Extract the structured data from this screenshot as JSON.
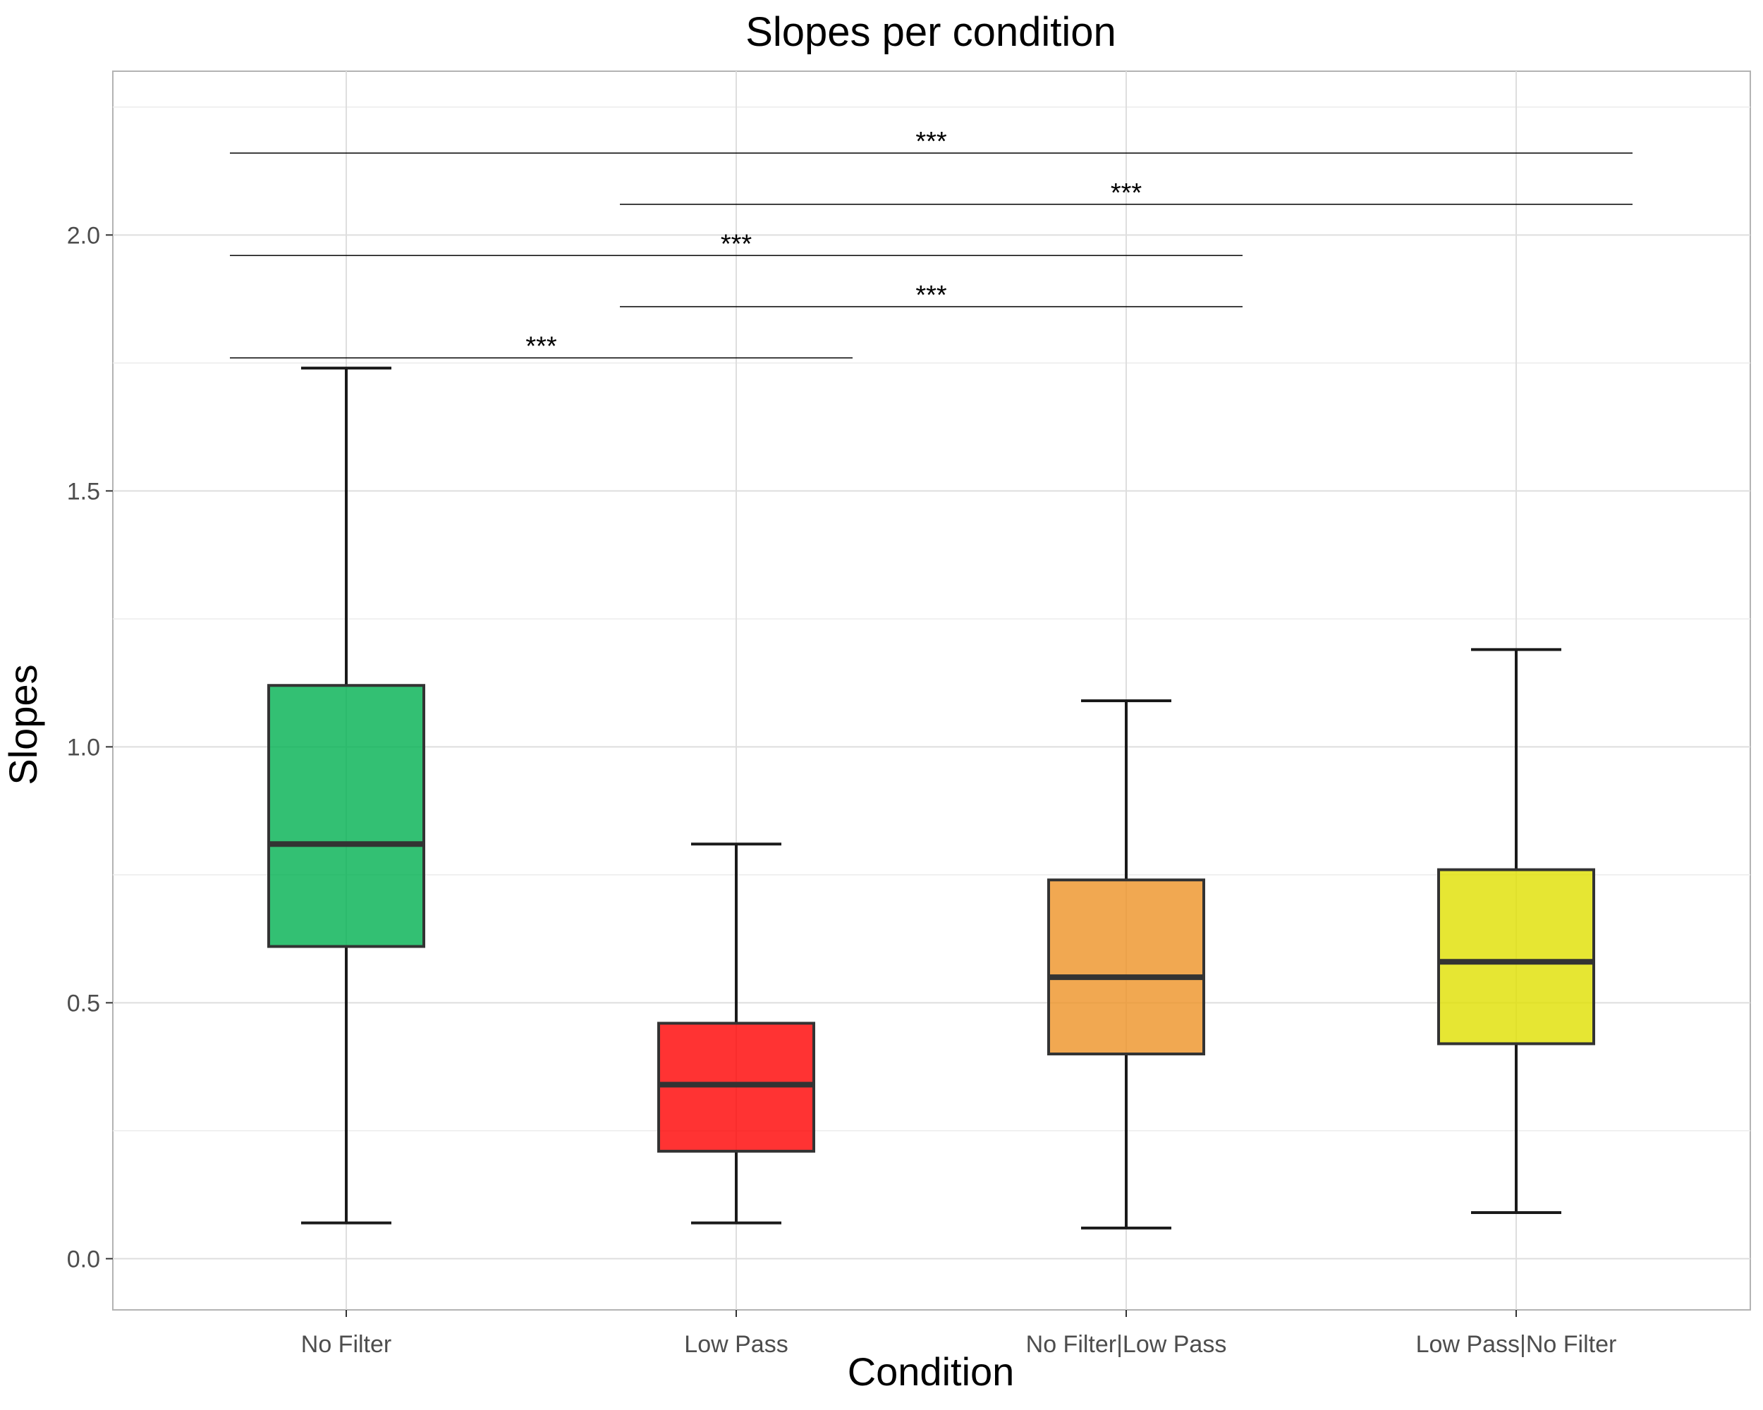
{
  "chart_data": {
    "type": "boxplot",
    "title": "Slopes per condition",
    "xlabel": "Condition",
    "ylabel": "Slopes",
    "ylim": [
      -0.1,
      2.32
    ],
    "yticks": [
      0.0,
      0.5,
      1.0,
      1.5,
      2.0
    ],
    "ytick_labels": [
      "0.0",
      "0.5",
      "1.0",
      "1.5",
      "2.0"
    ],
    "grid": true,
    "legend": "none",
    "categories": [
      "No Filter",
      "Low Pass",
      "No Filter|Low Pass",
      "Low Pass|No Filter"
    ],
    "boxes": [
      {
        "category": "No Filter",
        "whisker_low": 0.07,
        "q1": 0.61,
        "median": 0.81,
        "q3": 1.12,
        "whisker_high": 1.74,
        "color": "#00B050"
      },
      {
        "category": "Low Pass",
        "whisker_low": 0.07,
        "q1": 0.21,
        "median": 0.34,
        "q3": 0.46,
        "whisker_high": 0.81,
        "color": "#FF0000"
      },
      {
        "category": "No Filter|Low Pass",
        "whisker_low": 0.06,
        "q1": 0.4,
        "median": 0.55,
        "q3": 0.74,
        "whisker_high": 1.09,
        "color": "#ED9225"
      },
      {
        "category": "Low Pass|No Filter",
        "whisker_low": 0.09,
        "q1": 0.42,
        "median": 0.58,
        "q3": 0.76,
        "whisker_high": 1.19,
        "color": "#E0E000"
      }
    ],
    "significance": [
      {
        "from": "No Filter",
        "to": "Low Pass|No Filter",
        "y": 2.16,
        "label": "***"
      },
      {
        "from": "Low Pass",
        "to": "Low Pass|No Filter",
        "y": 2.06,
        "label": "***"
      },
      {
        "from": "No Filter",
        "to": "No Filter|Low Pass",
        "y": 1.96,
        "label": "***"
      },
      {
        "from": "Low Pass",
        "to": "No Filter|Low Pass",
        "y": 1.86,
        "label": "***"
      },
      {
        "from": "No Filter",
        "to": "Low Pass",
        "y": 1.76,
        "label": "***"
      }
    ]
  }
}
